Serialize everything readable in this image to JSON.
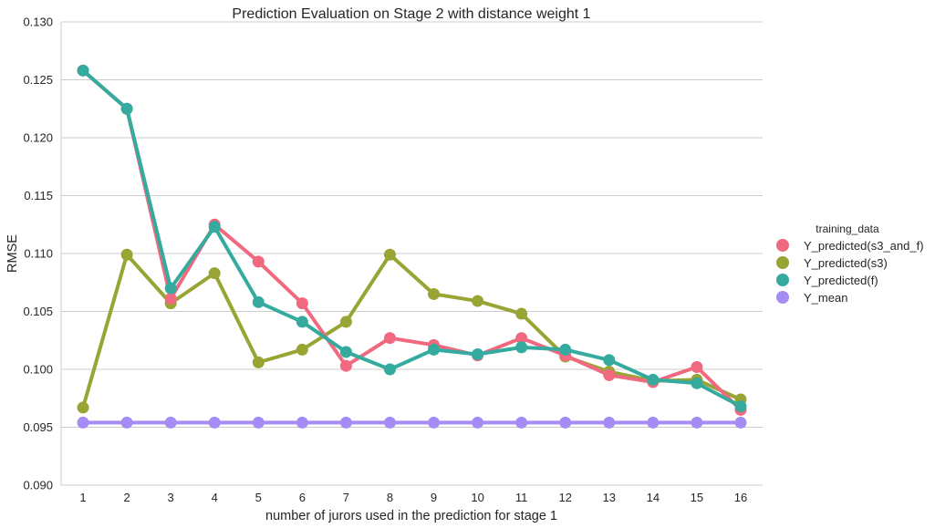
{
  "chart_data": {
    "type": "line",
    "title": "Prediction Evaluation on Stage 2 with distance weight 1",
    "xlabel": "number of jurors used in the prediction for stage 1",
    "ylabel": "RMSE",
    "categories": [
      "1",
      "2",
      "3",
      "4",
      "5",
      "6",
      "7",
      "8",
      "9",
      "10",
      "11",
      "12",
      "13",
      "14",
      "15",
      "16"
    ],
    "ylim": [
      0.09,
      0.13
    ],
    "yticks": [
      "0.090",
      "0.095",
      "0.100",
      "0.105",
      "0.110",
      "0.115",
      "0.120",
      "0.125",
      "0.130"
    ],
    "grid": "horizontal",
    "legend": {
      "title": "training_data",
      "placement": "right"
    },
    "series": [
      {
        "name": "Y_predicted(s3_and_f)",
        "color": "#f0697f",
        "values": [
          0.1258,
          0.1225,
          0.1061,
          0.1125,
          0.1093,
          0.1057,
          0.1003,
          0.1027,
          0.1021,
          0.1012,
          0.1027,
          0.1012,
          0.0995,
          0.0989,
          0.1002,
          0.0965
        ]
      },
      {
        "name": "Y_predicted(s3)",
        "color": "#98a434",
        "values": [
          0.0967,
          0.1099,
          0.1057,
          0.1083,
          0.1006,
          0.1017,
          0.1041,
          0.1099,
          0.1065,
          0.1059,
          0.1048,
          0.1011,
          0.0998,
          0.099,
          0.0991,
          0.0974
        ]
      },
      {
        "name": "Y_predicted(f)",
        "color": "#34ab9e",
        "values": [
          0.1258,
          0.1225,
          0.107,
          0.1123,
          0.1058,
          0.1041,
          0.1015,
          0.1,
          0.1017,
          0.1013,
          0.1019,
          0.1017,
          0.1008,
          0.0991,
          0.0988,
          0.0968
        ]
      },
      {
        "name": "Y_mean",
        "color": "#a48cf4",
        "values": [
          0.0954,
          0.0954,
          0.0954,
          0.0954,
          0.0954,
          0.0954,
          0.0954,
          0.0954,
          0.0954,
          0.0954,
          0.0954,
          0.0954,
          0.0954,
          0.0954,
          0.0954,
          0.0954
        ]
      }
    ]
  }
}
